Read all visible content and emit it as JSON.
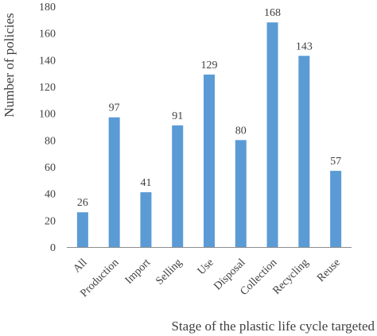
{
  "chart_data": {
    "type": "bar",
    "xlabel": "Stage of the plastic life cycle targeted",
    "ylabel": "Number of policies",
    "ylim": [
      0,
      180
    ],
    "yticks": [
      0,
      20,
      40,
      60,
      80,
      100,
      120,
      140,
      160,
      180
    ],
    "grid": false,
    "bar_color": "#5b9bd5",
    "categories": [
      "All",
      "Production",
      "Import",
      "Selling",
      "Use",
      "Disposal",
      "Collection",
      "Recycling",
      "Reuse"
    ],
    "values": [
      26,
      97,
      41,
      91,
      129,
      80,
      168,
      143,
      57
    ],
    "data_labels": [
      "26",
      "97",
      "41",
      "91",
      "129",
      "80",
      "168",
      "143",
      "57"
    ]
  }
}
